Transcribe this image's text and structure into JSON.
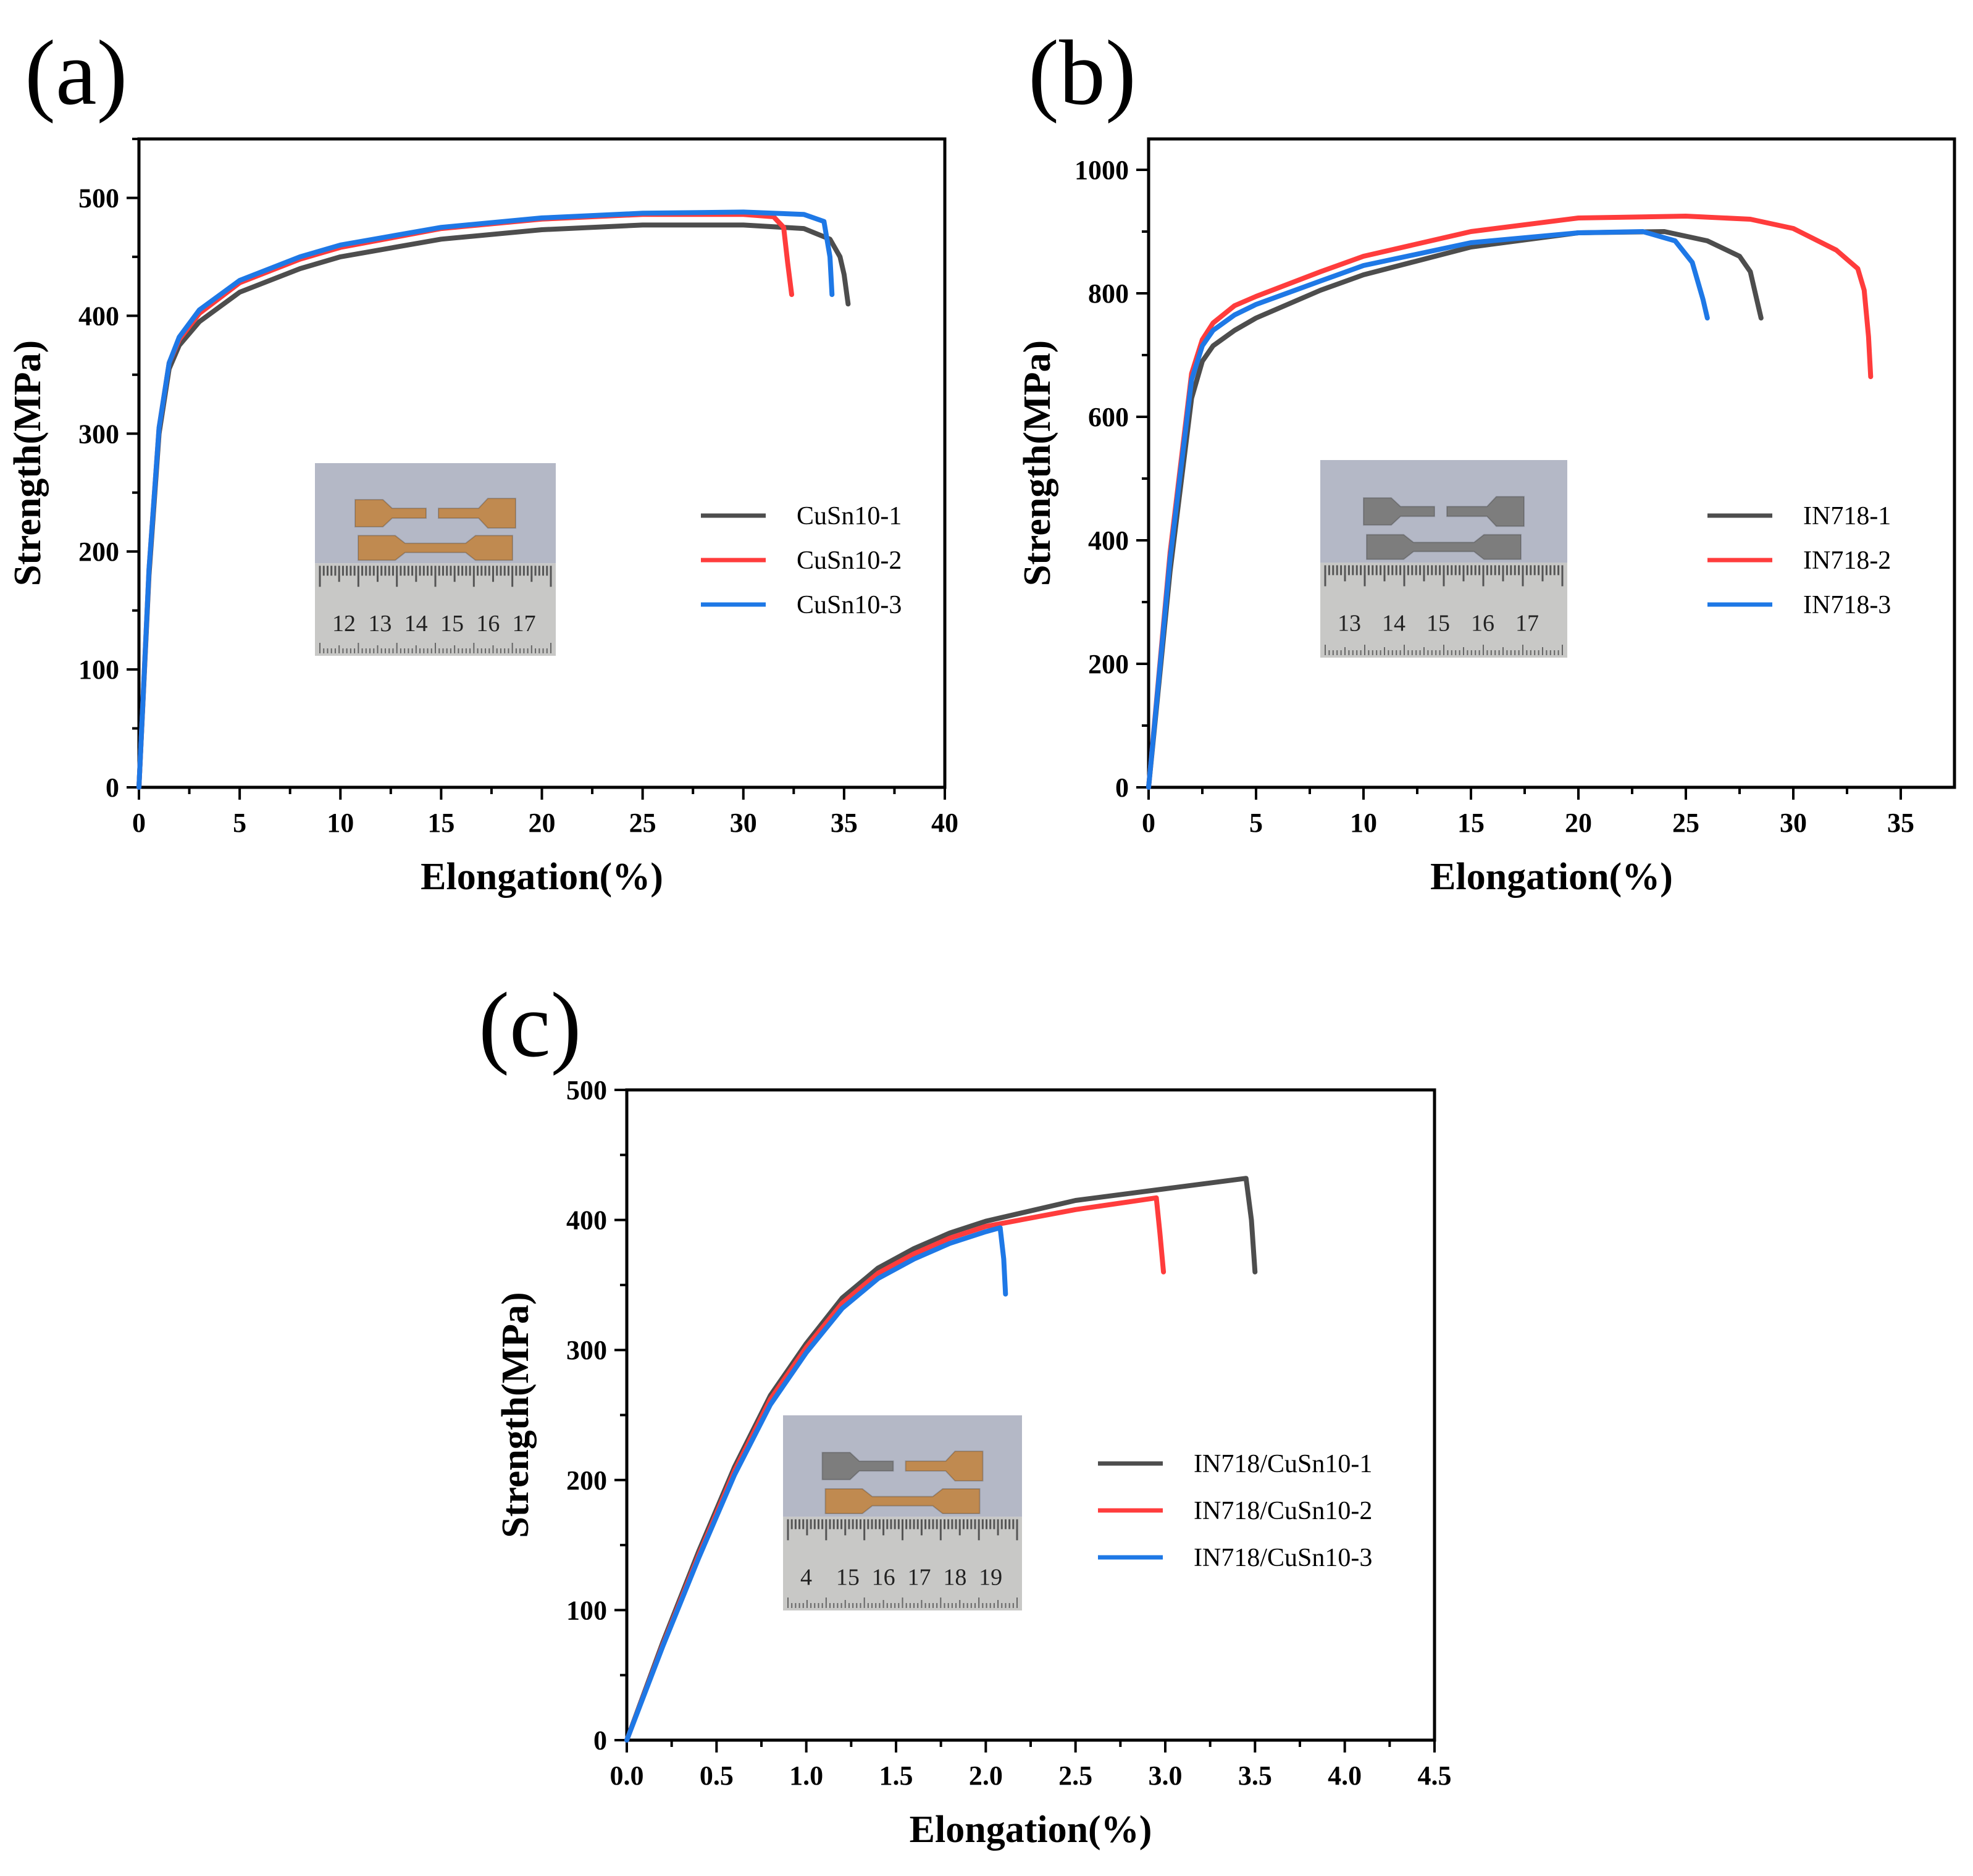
{
  "chart_data": [
    {
      "type": "line",
      "panel": "(a)",
      "xlabel": "Elongation(%)",
      "ylabel": "Strength(MPa)",
      "xlim": [
        0,
        40
      ],
      "ylim": [
        0,
        550
      ],
      "xticks": [
        0,
        5,
        10,
        15,
        20,
        25,
        30,
        35,
        40
      ],
      "yticks": [
        0,
        100,
        200,
        300,
        400,
        500
      ],
      "legend_position": "center-right",
      "inset": {
        "ruler_numbers": [
          "12",
          "13",
          "14",
          "15",
          "16",
          "17"
        ],
        "specimen_color": "#c08a50",
        "specimen_color_b": "#c08a50"
      },
      "series": [
        {
          "name": "CuSn10-1",
          "color": "#4d4d4d",
          "x": [
            0,
            0.5,
            1.0,
            1.5,
            2,
            3,
            5,
            8,
            10,
            15,
            20,
            25,
            30,
            33,
            34.3,
            34.8,
            35.0,
            35.2
          ],
          "y": [
            0,
            180,
            300,
            355,
            375,
            395,
            420,
            440,
            450,
            465,
            473,
            477,
            477,
            474,
            465,
            450,
            435,
            410
          ]
        },
        {
          "name": "CuSn10-2",
          "color": "#ff3c3c",
          "x": [
            0,
            0.5,
            1.0,
            1.5,
            2,
            3,
            5,
            8,
            10,
            15,
            20,
            25,
            30,
            31.5,
            32.0,
            32.2,
            32.4
          ],
          "y": [
            0,
            185,
            305,
            360,
            380,
            402,
            428,
            448,
            458,
            474,
            482,
            486,
            486,
            484,
            475,
            445,
            418
          ]
        },
        {
          "name": "CuSn10-3",
          "color": "#1e78e6",
          "x": [
            0,
            0.5,
            1.0,
            1.5,
            2,
            3,
            5,
            8,
            10,
            15,
            20,
            25,
            30,
            33,
            34.0,
            34.3,
            34.4
          ],
          "y": [
            0,
            185,
            305,
            360,
            382,
            405,
            430,
            450,
            460,
            475,
            483,
            487,
            488,
            486,
            480,
            450,
            418
          ]
        }
      ]
    },
    {
      "type": "line",
      "panel": "(b)",
      "xlabel": "Elongation(%)",
      "ylabel": "Strength(MPa)",
      "xlim": [
        0,
        37.5
      ],
      "ylim": [
        0,
        1050
      ],
      "xticks": [
        0,
        5,
        10,
        15,
        20,
        25,
        30,
        35
      ],
      "yticks": [
        0,
        200,
        400,
        600,
        800,
        1000
      ],
      "legend_position": "center-right",
      "inset": {
        "ruler_numbers": [
          "13",
          "14",
          "15",
          "16",
          "17"
        ],
        "specimen_color": "#7d7d7d",
        "specimen_color_b": "#7d7d7d"
      },
      "series": [
        {
          "name": "IN718-1",
          "color": "#4d4d4d",
          "x": [
            0,
            1.0,
            2.0,
            2.5,
            3,
            4,
            5,
            8,
            10,
            15,
            20,
            24,
            26,
            27.5,
            28.0,
            28.3,
            28.5
          ],
          "y": [
            0,
            350,
            630,
            690,
            715,
            740,
            760,
            805,
            830,
            875,
            898,
            900,
            885,
            860,
            835,
            790,
            760
          ]
        },
        {
          "name": "IN718-2",
          "color": "#ff3c3c",
          "x": [
            0,
            1.0,
            2.0,
            2.5,
            3,
            4,
            5,
            8,
            10,
            15,
            20,
            25,
            28,
            30,
            32,
            33.0,
            33.3,
            33.5,
            33.6
          ],
          "y": [
            0,
            380,
            670,
            725,
            752,
            780,
            795,
            835,
            860,
            900,
            922,
            925,
            920,
            905,
            870,
            840,
            805,
            730,
            665
          ]
        },
        {
          "name": "IN718-3",
          "color": "#1e78e6",
          "x": [
            0,
            1.0,
            2.0,
            2.5,
            3,
            4,
            5,
            8,
            10,
            15,
            20,
            23,
            24.5,
            25.3,
            25.8,
            26.0
          ],
          "y": [
            0,
            370,
            660,
            715,
            740,
            765,
            782,
            820,
            845,
            882,
            898,
            900,
            885,
            850,
            790,
            760
          ]
        }
      ]
    },
    {
      "type": "line",
      "panel": "(c)",
      "xlabel": "Elongation(%)",
      "ylabel": "Strength(MPa)",
      "xlim": [
        0,
        4.5
      ],
      "ylim": [
        0,
        500
      ],
      "xticks": [
        0.0,
        0.5,
        1.0,
        1.5,
        2.0,
        2.5,
        3.0,
        3.5,
        4.0,
        4.5
      ],
      "xtick_labels": [
        "0.0",
        "0.5",
        "1.0",
        "1.5",
        "2.0",
        "2.5",
        "3.0",
        "3.5",
        "4.0",
        "4.5"
      ],
      "yticks": [
        0,
        100,
        200,
        300,
        400,
        500
      ],
      "legend_position": "center-right",
      "inset": {
        "ruler_numbers": [
          "4",
          "15",
          "16",
          "17",
          "18",
          "19"
        ],
        "specimen_color": "#7d7d7d",
        "specimen_color_b": "#c08a50"
      },
      "series": [
        {
          "name": "IN718/CuSn10-1",
          "color": "#4d4d4d",
          "x": [
            0,
            0.2,
            0.4,
            0.6,
            0.8,
            1.0,
            1.2,
            1.4,
            1.6,
            1.8,
            2.0,
            2.5,
            3.0,
            3.45,
            3.48,
            3.5
          ],
          "y": [
            0,
            75,
            145,
            210,
            265,
            305,
            340,
            363,
            378,
            390,
            399,
            415,
            424,
            432,
            400,
            360
          ]
        },
        {
          "name": "IN718/CuSn10-2",
          "color": "#ff3c3c",
          "x": [
            0,
            0.2,
            0.4,
            0.6,
            0.8,
            1.0,
            1.2,
            1.4,
            1.6,
            1.8,
            2.0,
            2.5,
            2.95,
            2.97,
            2.99
          ],
          "y": [
            0,
            73,
            142,
            207,
            262,
            302,
            336,
            359,
            374,
            386,
            395,
            408,
            417,
            390,
            360
          ]
        },
        {
          "name": "IN718/CuSn10-3",
          "color": "#1e78e6",
          "x": [
            0,
            0.2,
            0.4,
            0.6,
            0.8,
            1.0,
            1.2,
            1.4,
            1.6,
            1.8,
            2.0,
            2.08,
            2.1,
            2.11
          ],
          "y": [
            0,
            72,
            140,
            204,
            258,
            298,
            332,
            355,
            370,
            382,
            391,
            394,
            370,
            343
          ]
        }
      ]
    }
  ]
}
